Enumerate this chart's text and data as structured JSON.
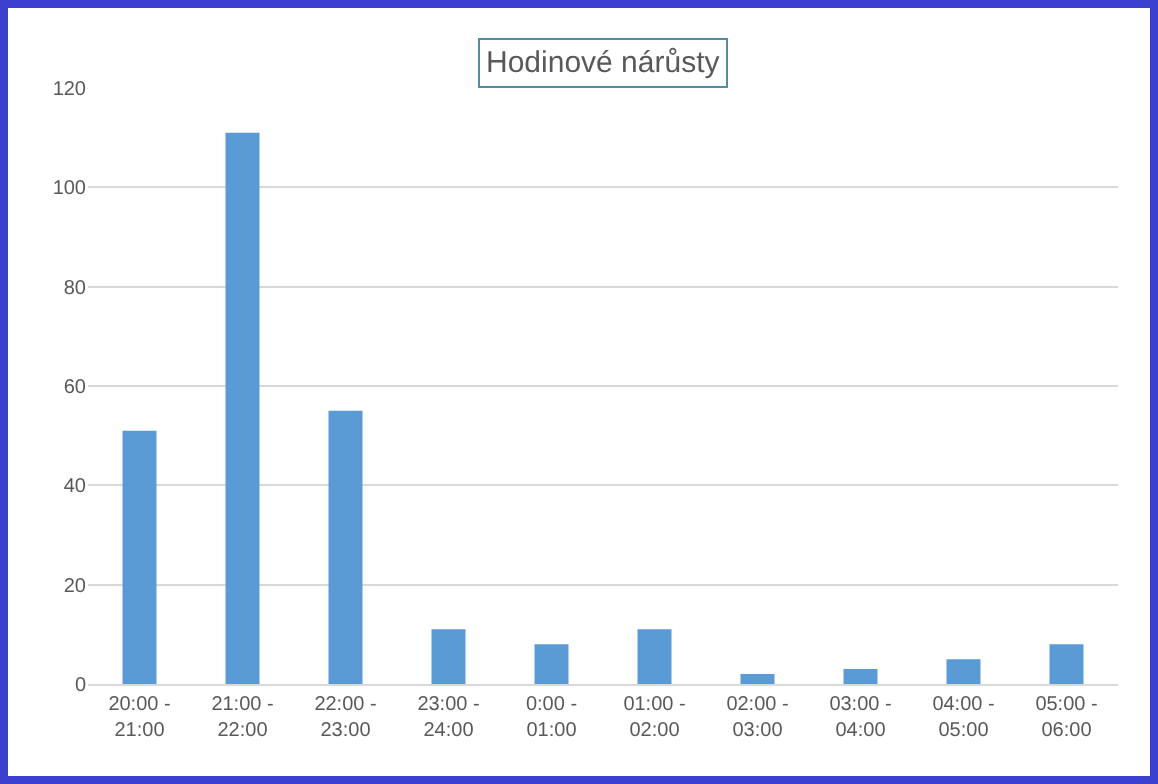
{
  "chart_data": {
    "type": "bar",
    "title": "Hodinové nárůsty",
    "categories": [
      "20:00 - 21:00",
      "21:00 - 22:00",
      "22:00 - 23:00",
      "23:00 - 24:00",
      "0:00 - 01:00",
      "01:00 - 02:00",
      "02:00 - 03:00",
      "03:00 - 04:00",
      "04:00 - 05:00",
      "05:00 - 06:00"
    ],
    "values": [
      51,
      111,
      55,
      11,
      8,
      11,
      2,
      3,
      5,
      8
    ],
    "color": "#5b9bd5",
    "ylim": [
      0,
      120
    ],
    "yticks": [
      0,
      20,
      40,
      60,
      80,
      100,
      120
    ],
    "grid": "y"
  }
}
